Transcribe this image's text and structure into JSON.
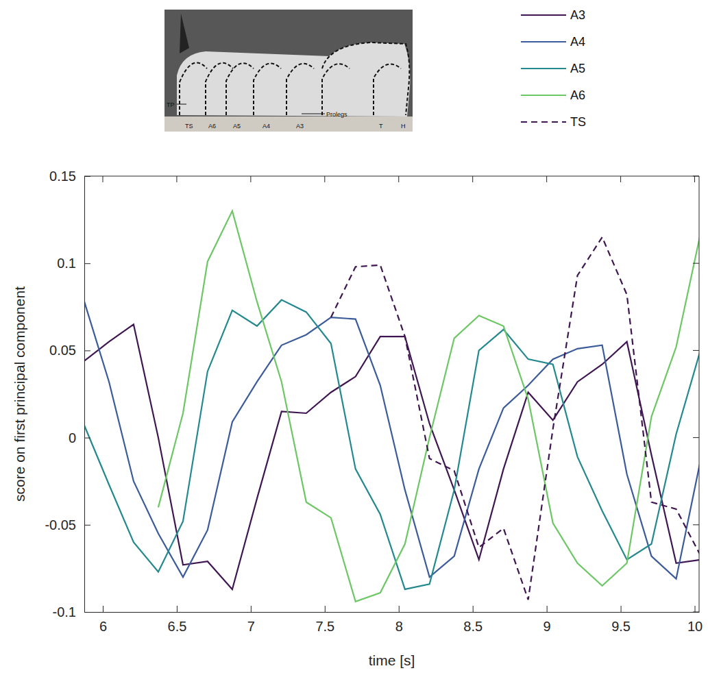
{
  "chart_data": {
    "type": "line",
    "x_label": "time [s]",
    "y_label": "score on first principal component",
    "annotations": [
      "TP",
      "TS",
      "A6",
      "A5",
      "A4",
      "A3",
      "Prolegs",
      "T",
      "H"
    ],
    "x": [
      5.875,
      6.042,
      6.208,
      6.375,
      6.542,
      6.708,
      6.875,
      7.042,
      7.208,
      7.375,
      7.542,
      7.708,
      7.875,
      8.042,
      8.208,
      8.375,
      8.542,
      8.708,
      8.875,
      9.042,
      9.208,
      9.375,
      9.542,
      9.708,
      9.875,
      10.042
    ],
    "series": [
      {
        "name": "A3",
        "color": "#3f1652",
        "line_style": "solid",
        "values": [
          0.044,
          0.055,
          0.065,
          0.0,
          -0.073,
          -0.071,
          -0.087,
          -0.035,
          0.015,
          0.014,
          0.026,
          0.035,
          0.058,
          0.058,
          0.008,
          -0.03,
          -0.07,
          -0.018,
          0.026,
          0.01,
          0.032,
          0.042,
          0.055,
          -0.01,
          -0.072,
          -0.07
        ]
      },
      {
        "name": "A4",
        "color": "#3b5b9a",
        "line_style": "solid",
        "values": [
          0.078,
          0.032,
          -0.025,
          -0.055,
          -0.08,
          -0.053,
          0.009,
          0.032,
          0.053,
          0.059,
          0.069,
          0.068,
          0.03,
          -0.03,
          -0.08,
          -0.068,
          -0.018,
          0.017,
          0.03,
          0.045,
          0.051,
          0.053,
          -0.021,
          -0.068,
          -0.081,
          -0.012
        ]
      },
      {
        "name": "A5",
        "color": "#23898e",
        "line_style": "solid",
        "values": [
          0.007,
          -0.027,
          -0.06,
          -0.077,
          -0.048,
          0.038,
          0.073,
          0.064,
          0.079,
          0.072,
          0.054,
          -0.018,
          -0.044,
          -0.087,
          -0.084,
          -0.03,
          0.05,
          0.062,
          0.045,
          0.042,
          -0.011,
          -0.042,
          -0.07,
          -0.061,
          0.002,
          0.051
        ]
      },
      {
        "name": "A6",
        "color": "#6cc764",
        "line_style": "solid",
        "values": [
          null,
          null,
          null,
          -0.04,
          0.014,
          0.101,
          0.13,
          0.078,
          0.032,
          -0.037,
          -0.046,
          -0.094,
          -0.089,
          -0.061,
          0.0,
          0.057,
          0.07,
          0.064,
          0.022,
          -0.049,
          -0.072,
          -0.085,
          -0.072,
          0.012,
          0.052,
          0.118
        ]
      },
      {
        "name": "TS",
        "color": "#3f1652",
        "line_style": "dashed",
        "values": [
          null,
          null,
          null,
          null,
          null,
          null,
          null,
          null,
          null,
          null,
          0.069,
          0.098,
          0.099,
          0.058,
          -0.012,
          -0.019,
          -0.063,
          -0.052,
          -0.093,
          0.005,
          0.093,
          0.115,
          0.082,
          -0.037,
          -0.041,
          -0.068
        ]
      }
    ],
    "xlim": [
      5.875,
      10.03
    ],
    "ylim": [
      -0.1,
      0.15
    ],
    "xticks": [
      6,
      6.5,
      7,
      7.5,
      8,
      8.5,
      9,
      9.5,
      10
    ],
    "yticks": [
      -0.1,
      -0.05,
      0,
      0.05,
      0.1,
      0.15
    ],
    "grid": false,
    "legend": "top-right"
  }
}
